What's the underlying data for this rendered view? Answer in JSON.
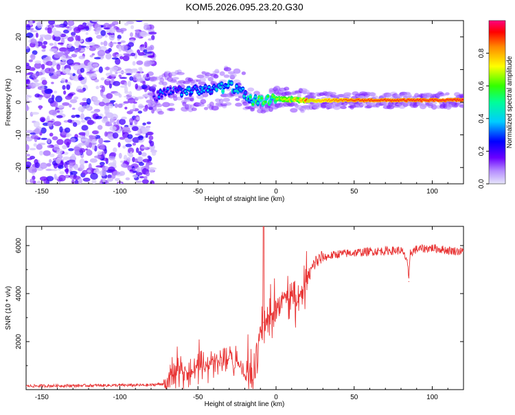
{
  "title": "KOM5.2026.095.23.20.G30",
  "chart_data": [
    {
      "type": "heatmap",
      "title": "KOM5.2026.095.23.20.G30",
      "xlabel": "Height of straight line (km)",
      "ylabel": "Frequency (Hz)",
      "xlim": [
        -160,
        120
      ],
      "ylim": [
        -25,
        25
      ],
      "xticks": [
        -150,
        -100,
        -50,
        0,
        50,
        100
      ],
      "yticks": [
        -20,
        -10,
        0,
        10,
        20
      ],
      "noise_region_x": [
        -160,
        -80
      ],
      "ridge": {
        "x": [
          -78,
          -70,
          -60,
          -50,
          -40,
          -30,
          -22,
          -18,
          -10,
          0,
          10,
          20,
          50,
          100,
          120
        ],
        "freq": [
          1.5,
          3.0,
          3.5,
          3.5,
          4.0,
          5.0,
          3.5,
          0.5,
          0.5,
          1.0,
          0.8,
          0.5,
          0.6,
          0.6,
          0.7
        ],
        "amplitude": [
          0.22,
          0.3,
          0.32,
          0.34,
          0.38,
          0.4,
          0.35,
          0.45,
          0.55,
          0.6,
          0.7,
          0.8,
          0.92,
          0.95,
          0.95
        ]
      },
      "colorbar": {
        "label": "Normalized spectral amplitude",
        "ticks": [
          "0.0",
          "0.2",
          "0.4",
          "0.6",
          "0.8"
        ],
        "range": [
          0,
          1
        ]
      }
    },
    {
      "type": "line",
      "xlabel": "Height of straight line (km)",
      "ylabel": "SNR (10 * v/v)",
      "xlim": [
        -160,
        120
      ],
      "ylim": [
        0,
        6800
      ],
      "xticks": [
        -150,
        -100,
        -50,
        0,
        50,
        100
      ],
      "yticks": [
        2000,
        4000,
        6000
      ],
      "color": "#e83232",
      "series": [
        {
          "name": "SNR",
          "x": [
            -160,
            -140,
            -120,
            -100,
            -80,
            -72,
            -68,
            -60,
            -55,
            -50,
            -45,
            -40,
            -35,
            -30,
            -25,
            -20,
            -15,
            -10,
            -8,
            -5,
            0,
            5,
            10,
            13,
            15,
            20,
            25,
            30,
            40,
            50,
            60,
            70,
            80,
            84,
            85,
            86,
            90,
            100,
            110,
            120
          ],
          "y": [
            150,
            160,
            170,
            180,
            190,
            250,
            600,
            800,
            700,
            1000,
            900,
            1200,
            1100,
            1300,
            1200,
            600,
            400,
            2500,
            2800,
            3000,
            3300,
            3800,
            3900,
            3500,
            3900,
            4600,
            5300,
            5500,
            5650,
            5700,
            5750,
            5780,
            5800,
            5400,
            4500,
            5700,
            5850,
            5900,
            5800,
            5750
          ]
        }
      ]
    }
  ]
}
